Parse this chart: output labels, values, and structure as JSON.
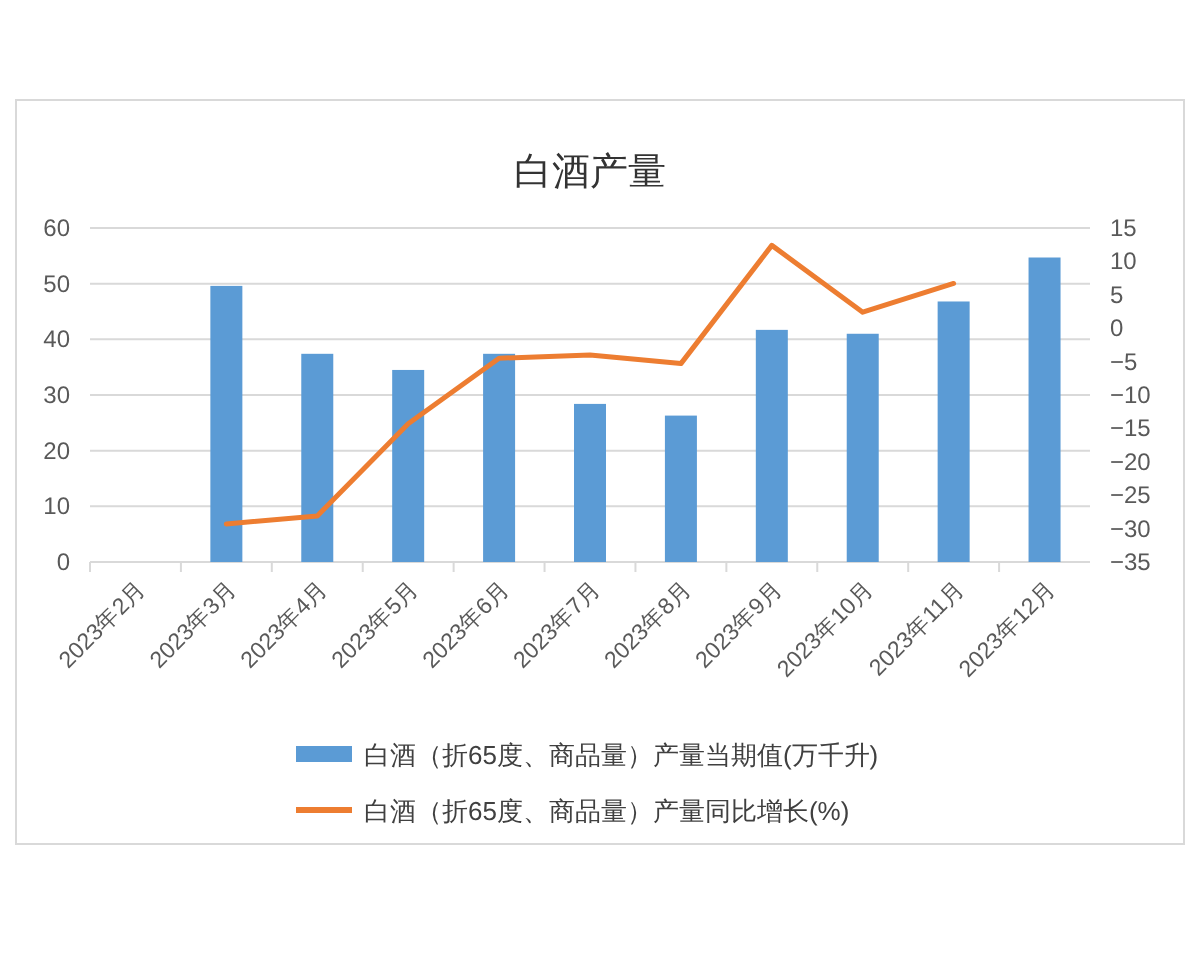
{
  "chart_data": {
    "type": "bar",
    "title": "白酒产量",
    "categories": [
      "2023年2月",
      "2023年3月",
      "2023年4月",
      "2023年5月",
      "2023年6月",
      "2023年7月",
      "2023年8月",
      "2023年9月",
      "2023年10月",
      "2023年11月",
      "2023年12月"
    ],
    "series": [
      {
        "name": "白酒（折65度、商品量）产量当期值(万千升)",
        "color": "#5b9bd5",
        "values": [
          null,
          49.6,
          37.4,
          34.5,
          37.4,
          28.4,
          26.3,
          41.7,
          41.0,
          46.8,
          54.7
        ]
      },
      {
        "name": "白酒（折65度、商品量）产量同比增长(%)",
        "type": "line",
        "axis": "y2",
        "color": "#ed7d31",
        "values": [
          null,
          -29.3,
          -28.1,
          -14.3,
          -4.5,
          -4.0,
          -5.3,
          12.4,
          2.4,
          6.7,
          null
        ]
      }
    ],
    "ylim": [
      0,
      60
    ],
    "yticks": [
      0,
      10,
      20,
      30,
      40,
      50,
      60
    ],
    "y2lim": [
      -35,
      15
    ],
    "y2ticks": [
      -35,
      -30,
      -25,
      -20,
      -15,
      -10,
      -5,
      0,
      5,
      10,
      15
    ],
    "grid": "y",
    "legend": "bottom"
  }
}
